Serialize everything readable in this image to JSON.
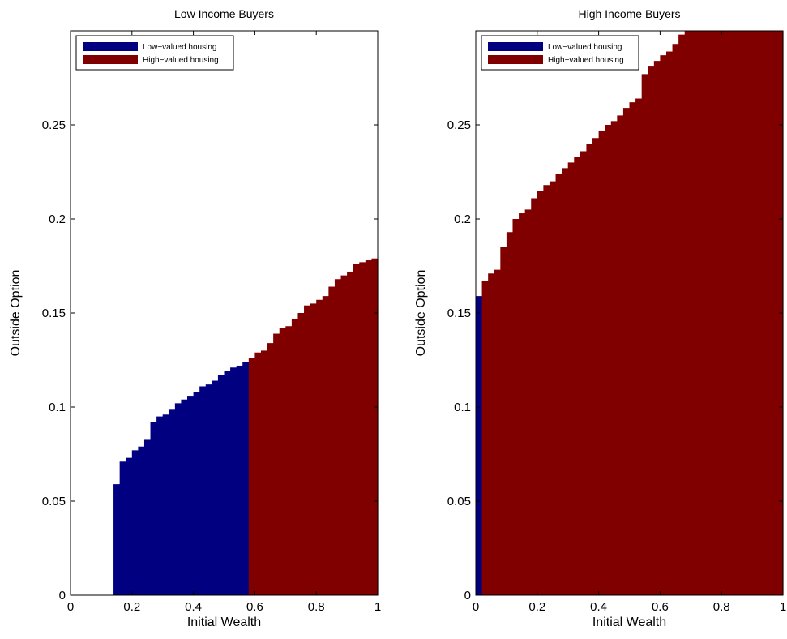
{
  "chart_data": [
    {
      "type": "area",
      "title": "Low Income Buyers",
      "xlabel": "Initial Wealth",
      "ylabel": "Outside Option",
      "xlim": [
        0,
        1
      ],
      "ylim": [
        0,
        0.3
      ],
      "xticks": [
        "0",
        "0.2",
        "0.4",
        "0.6",
        "0.8",
        "1"
      ],
      "yticks": [
        "0",
        "0.05",
        "0.1",
        "0.15",
        "0.2",
        "0.25"
      ],
      "legend": {
        "location": "top-left",
        "entries": [
          "Low−valued housing",
          "High−valued housing"
        ]
      },
      "colors": {
        "low": "#000080",
        "high": "#800000"
      },
      "x_edges": [
        0.14,
        0.16,
        0.18,
        0.2,
        0.22,
        0.24,
        0.26,
        0.28,
        0.3,
        0.32,
        0.34,
        0.36,
        0.38,
        0.4,
        0.42,
        0.44,
        0.46,
        0.48,
        0.5,
        0.52,
        0.54,
        0.56,
        0.58,
        0.6,
        0.62,
        0.64,
        0.66,
        0.68,
        0.7,
        0.72,
        0.74,
        0.76,
        0.78,
        0.8,
        0.82,
        0.84,
        0.86,
        0.88,
        0.9,
        0.92,
        0.94,
        0.96,
        0.98,
        1.0
      ],
      "series": [
        {
          "name": "Low−valued housing",
          "values": [
            0.059,
            0.071,
            0.073,
            0.077,
            0.079,
            0.083,
            0.092,
            0.095,
            0.096,
            0.099,
            0.102,
            0.104,
            0.106,
            0.108,
            0.111,
            0.112,
            0.114,
            0.117,
            0.119,
            0.121,
            0.122,
            0.124
          ]
        },
        {
          "name": "High−valued housing",
          "values": [
            0.126,
            0.129,
            0.13,
            0.134,
            0.139,
            0.142,
            0.143,
            0.147,
            0.15,
            0.154,
            0.155,
            0.157,
            0.159,
            0.164,
            0.168,
            0.17,
            0.172,
            0.176,
            0.177,
            0.178,
            0.179
          ]
        }
      ]
    },
    {
      "type": "area",
      "title": "High Income Buyers",
      "xlabel": "Initial Wealth",
      "ylabel": "Outside Option",
      "xlim": [
        0,
        1
      ],
      "ylim": [
        0,
        0.3
      ],
      "xticks": [
        "0",
        "0.2",
        "0.4",
        "0.6",
        "0.8",
        "1"
      ],
      "yticks": [
        "0",
        "0.05",
        "0.1",
        "0.15",
        "0.2",
        "0.25"
      ],
      "legend": {
        "location": "top-left",
        "entries": [
          "Low−valued housing",
          "High−valued housing"
        ]
      },
      "colors": {
        "low": "#000080",
        "high": "#800000"
      },
      "x_edges": [
        0.0,
        0.02,
        0.04,
        0.06,
        0.08,
        0.1,
        0.12,
        0.14,
        0.16,
        0.18,
        0.2,
        0.22,
        0.24,
        0.26,
        0.28,
        0.3,
        0.32,
        0.34,
        0.36,
        0.38,
        0.4,
        0.42,
        0.44,
        0.46,
        0.48,
        0.5,
        0.52,
        0.54,
        0.56,
        0.58,
        0.6,
        0.62,
        0.64,
        0.66,
        0.68,
        0.7,
        0.72,
        0.74,
        0.76,
        0.78,
        0.8,
        0.82,
        0.84,
        0.86,
        0.88,
        0.9,
        0.92,
        0.94,
        0.96,
        0.98,
        1.0
      ],
      "series": [
        {
          "name": "Low−valued housing",
          "values": [
            0.159
          ]
        },
        {
          "name": "High−valued housing",
          "values": [
            0.167,
            0.171,
            0.173,
            0.185,
            0.193,
            0.2,
            0.203,
            0.205,
            0.211,
            0.215,
            0.218,
            0.22,
            0.224,
            0.227,
            0.23,
            0.233,
            0.236,
            0.24,
            0.243,
            0.247,
            0.25,
            0.252,
            0.255,
            0.259,
            0.262,
            0.264,
            0.277,
            0.281,
            0.284,
            0.287,
            0.289,
            0.293,
            0.298,
            0.3,
            0.3,
            0.3,
            0.3,
            0.3,
            0.3,
            0.3,
            0.3,
            0.3,
            0.3,
            0.3,
            0.3,
            0.3,
            0.3,
            0.3,
            0.3
          ]
        }
      ]
    }
  ]
}
